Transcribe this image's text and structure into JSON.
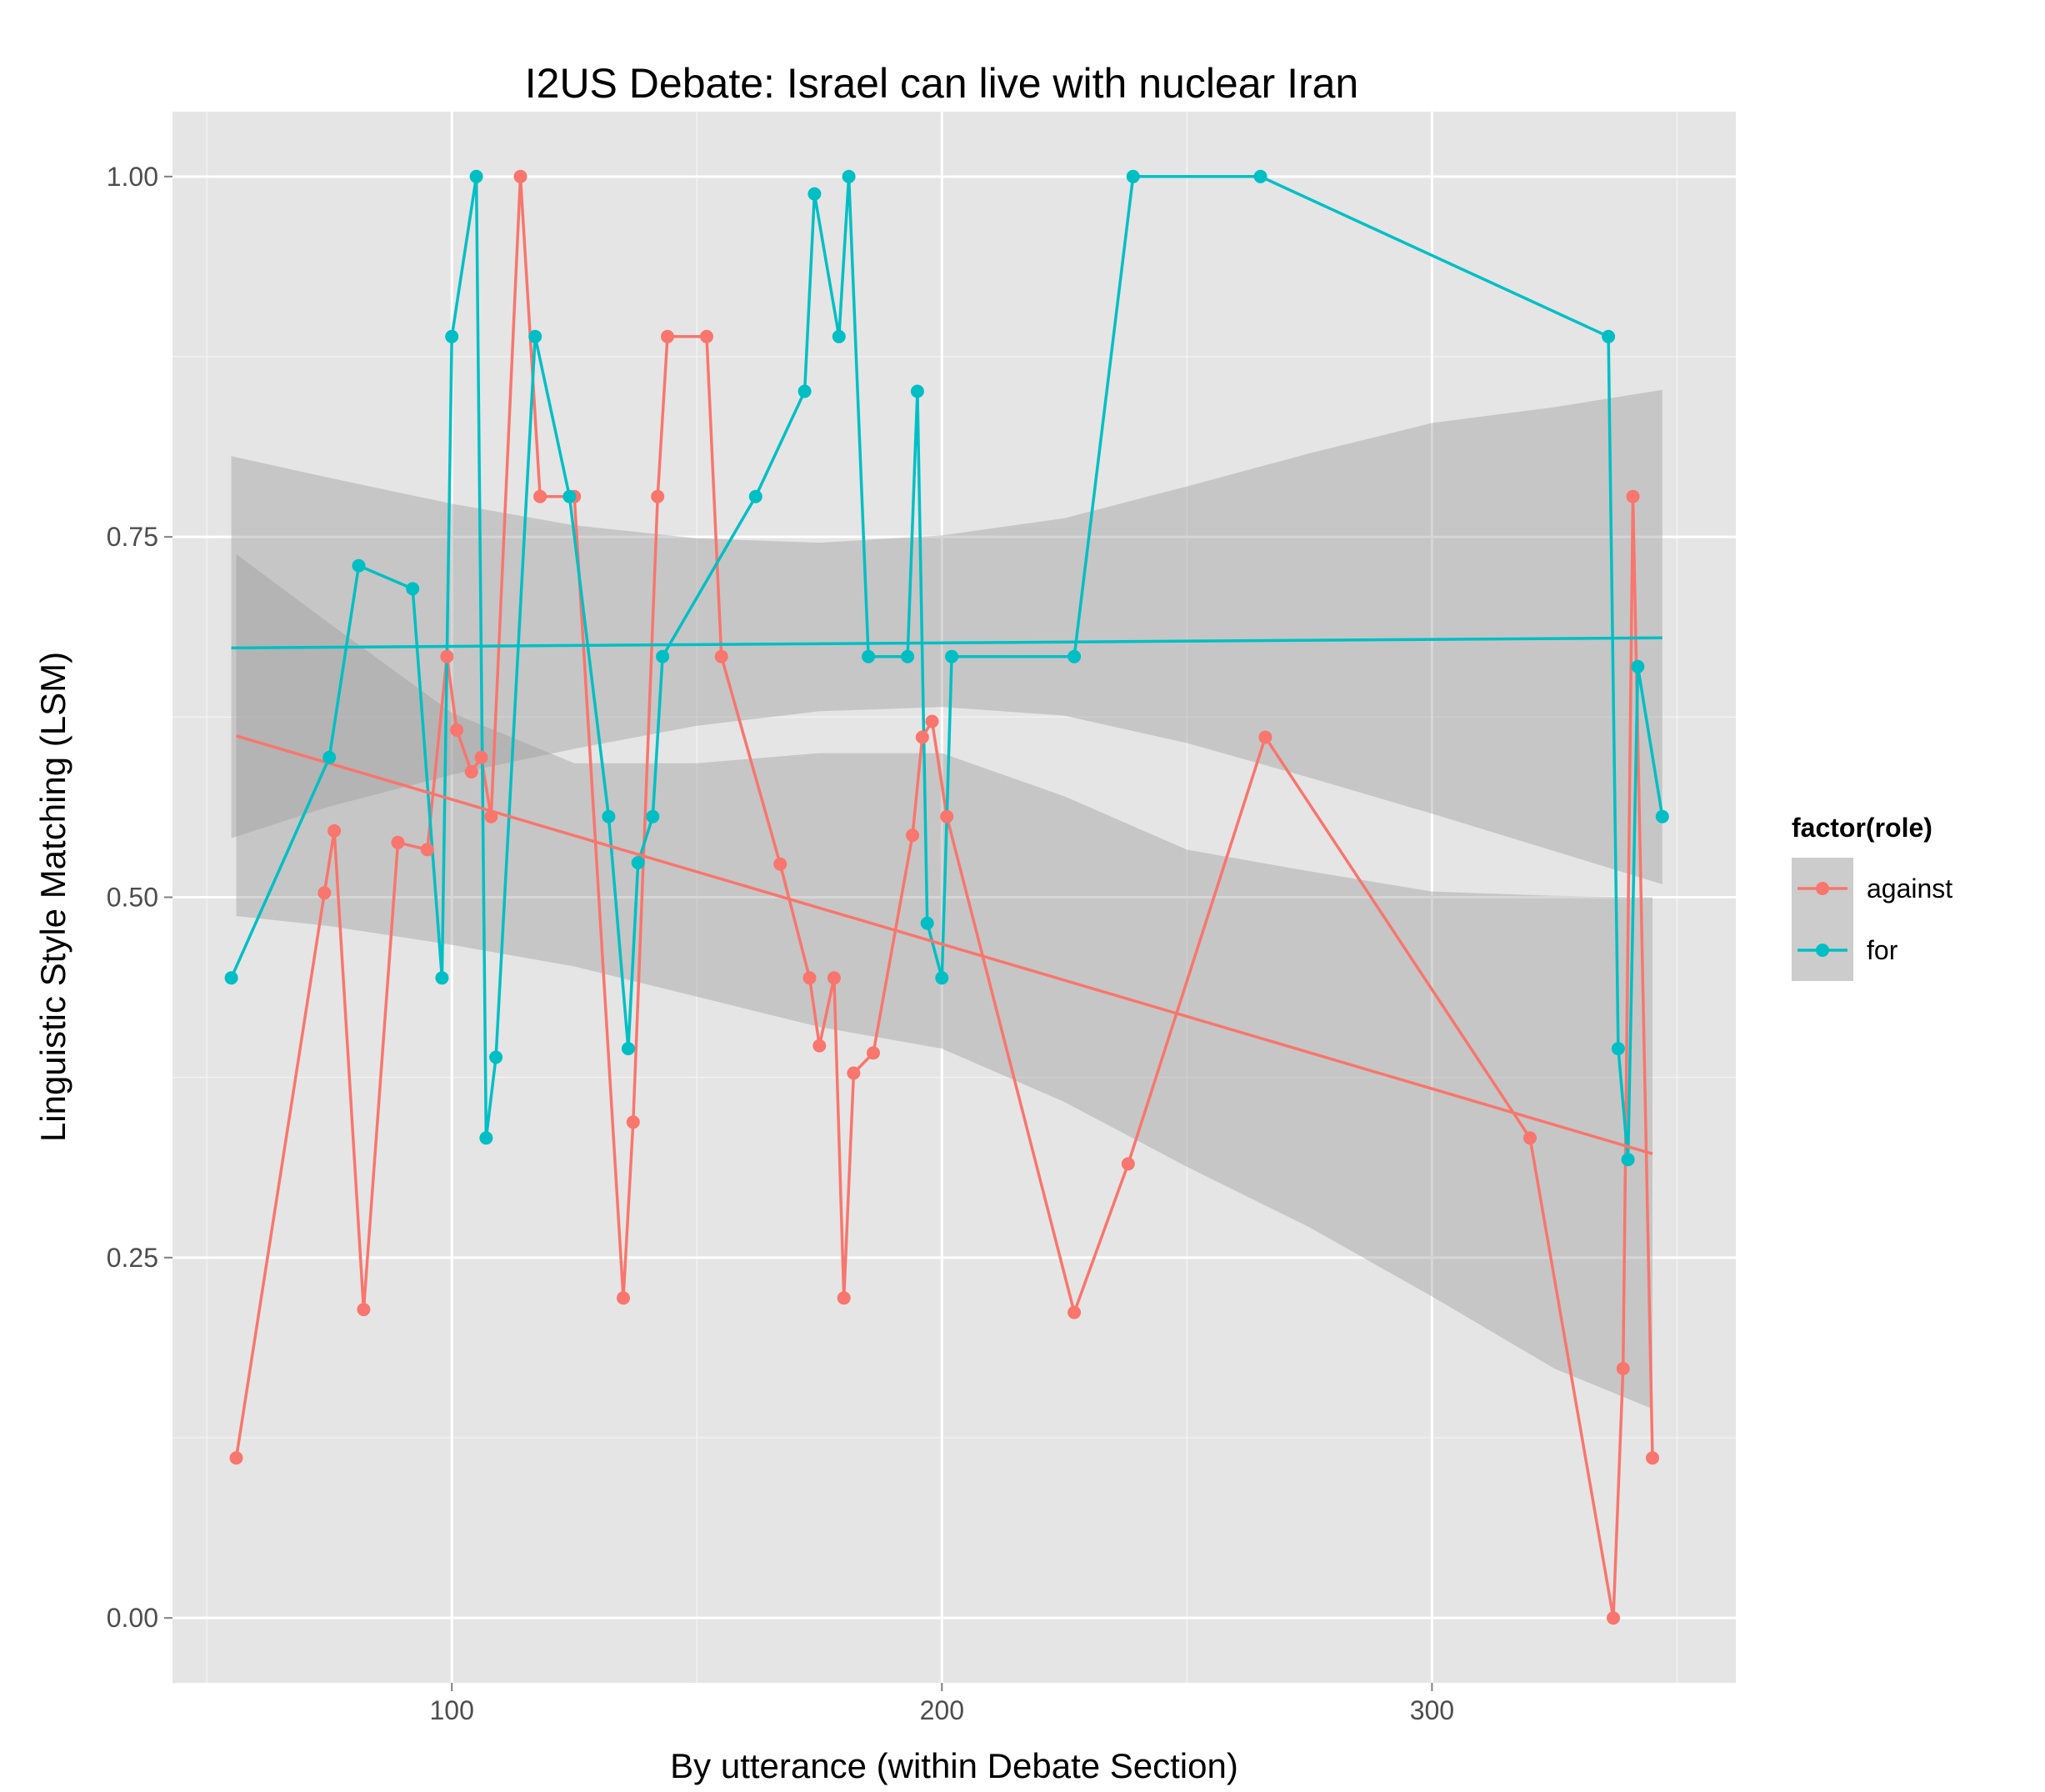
{
  "chart_data": {
    "type": "line",
    "title": "I2US Debate: Israel can live with nuclear Iran",
    "xlabel": "By utterance (within Debate Section)",
    "ylabel": "Linguistic Style Matching (LSM)",
    "xlim": [
      43,
      362
    ],
    "ylim": [
      -0.045,
      1.045
    ],
    "x_ticks": [
      "100",
      "200",
      "300"
    ],
    "x_tick_values": [
      100,
      200,
      300
    ],
    "y_ticks": [
      "0.00",
      "0.25",
      "0.50",
      "0.75",
      "1.00"
    ],
    "y_tick_values": [
      0,
      0.25,
      0.5,
      0.75,
      1.0
    ],
    "grid": true,
    "legend": {
      "title": "factor(role)",
      "position": "right",
      "entries": [
        "against",
        "for"
      ]
    },
    "series": [
      {
        "name": "against",
        "color": "#F8766D",
        "points": [
          [
            56,
            0.111
          ],
          [
            74,
            0.503
          ],
          [
            76,
            0.546
          ],
          [
            82,
            0.214
          ],
          [
            89,
            0.538
          ],
          [
            95,
            0.533
          ],
          [
            99,
            0.667
          ],
          [
            101,
            0.616
          ],
          [
            104,
            0.587
          ],
          [
            106,
            0.597
          ],
          [
            108,
            0.556
          ],
          [
            114,
            1.0
          ],
          [
            118,
            0.778
          ],
          [
            125,
            0.778
          ],
          [
            135,
            0.222
          ],
          [
            137,
            0.344
          ],
          [
            142,
            0.778
          ],
          [
            144,
            0.889
          ],
          [
            152,
            0.889
          ],
          [
            155,
            0.667
          ],
          [
            167,
            0.523
          ],
          [
            173,
            0.444
          ],
          [
            175,
            0.397
          ],
          [
            178,
            0.444
          ],
          [
            180,
            0.222
          ],
          [
            182,
            0.378
          ],
          [
            186,
            0.392
          ],
          [
            194,
            0.543
          ],
          [
            196,
            0.611
          ],
          [
            198,
            0.622
          ],
          [
            201,
            0.556
          ],
          [
            227,
            0.212
          ],
          [
            238,
            0.315
          ],
          [
            266,
            0.611
          ],
          [
            320,
            0.333
          ],
          [
            337,
            0.0
          ],
          [
            339,
            0.173
          ],
          [
            341,
            0.778
          ],
          [
            345,
            0.111
          ]
        ],
        "trend": {
          "x": [
            56,
            345
          ],
          "y": [
            0.612,
            0.322
          ]
        },
        "band": {
          "x": [
            56,
            75,
            100,
            125,
            150,
            175,
            200,
            225,
            250,
            275,
            300,
            325,
            345
          ],
          "lower": [
            0.487,
            0.48,
            0.467,
            0.452,
            0.431,
            0.41,
            0.395,
            0.358,
            0.313,
            0.271,
            0.223,
            0.173,
            0.145
          ],
          "upper": [
            0.738,
            0.69,
            0.628,
            0.593,
            0.593,
            0.6,
            0.6,
            0.57,
            0.533,
            0.518,
            0.504,
            0.501,
            0.5
          ]
        }
      },
      {
        "name": "for",
        "color": "#00BFC4",
        "points": [
          [
            55,
            0.444
          ],
          [
            75,
            0.597
          ],
          [
            81,
            0.73
          ],
          [
            92,
            0.714
          ],
          [
            98,
            0.444
          ],
          [
            100,
            0.889
          ],
          [
            105,
            1.0
          ],
          [
            107,
            0.333
          ],
          [
            109,
            0.389
          ],
          [
            117,
            0.889
          ],
          [
            124,
            0.778
          ],
          [
            132,
            0.556
          ],
          [
            136,
            0.395
          ],
          [
            138,
            0.524
          ],
          [
            141,
            0.556
          ],
          [
            143,
            0.667
          ],
          [
            162,
            0.778
          ],
          [
            172,
            0.851
          ],
          [
            174,
            0.988
          ],
          [
            179,
            0.889
          ],
          [
            181,
            1.0
          ],
          [
            185,
            0.667
          ],
          [
            193,
            0.667
          ],
          [
            195,
            0.851
          ],
          [
            197,
            0.482
          ],
          [
            200,
            0.444
          ],
          [
            202,
            0.667
          ],
          [
            227,
            0.667
          ],
          [
            239,
            1.0
          ],
          [
            265,
            1.0
          ],
          [
            336,
            0.889
          ],
          [
            338,
            0.395
          ],
          [
            340,
            0.318
          ],
          [
            342,
            0.66
          ],
          [
            347,
            0.556
          ]
        ],
        "trend": {
          "x": [
            55,
            347
          ],
          "y": [
            0.673,
            0.68
          ]
        },
        "band": {
          "x": [
            55,
            75,
            100,
            125,
            150,
            175,
            200,
            225,
            250,
            275,
            300,
            325,
            347
          ],
          "lower": [
            0.541,
            0.563,
            0.585,
            0.603,
            0.619,
            0.629,
            0.632,
            0.626,
            0.607,
            0.583,
            0.558,
            0.532,
            0.509
          ],
          "upper": [
            0.806,
            0.791,
            0.773,
            0.758,
            0.749,
            0.746,
            0.751,
            0.763,
            0.785,
            0.808,
            0.829,
            0.84,
            0.852
          ]
        }
      }
    ]
  }
}
